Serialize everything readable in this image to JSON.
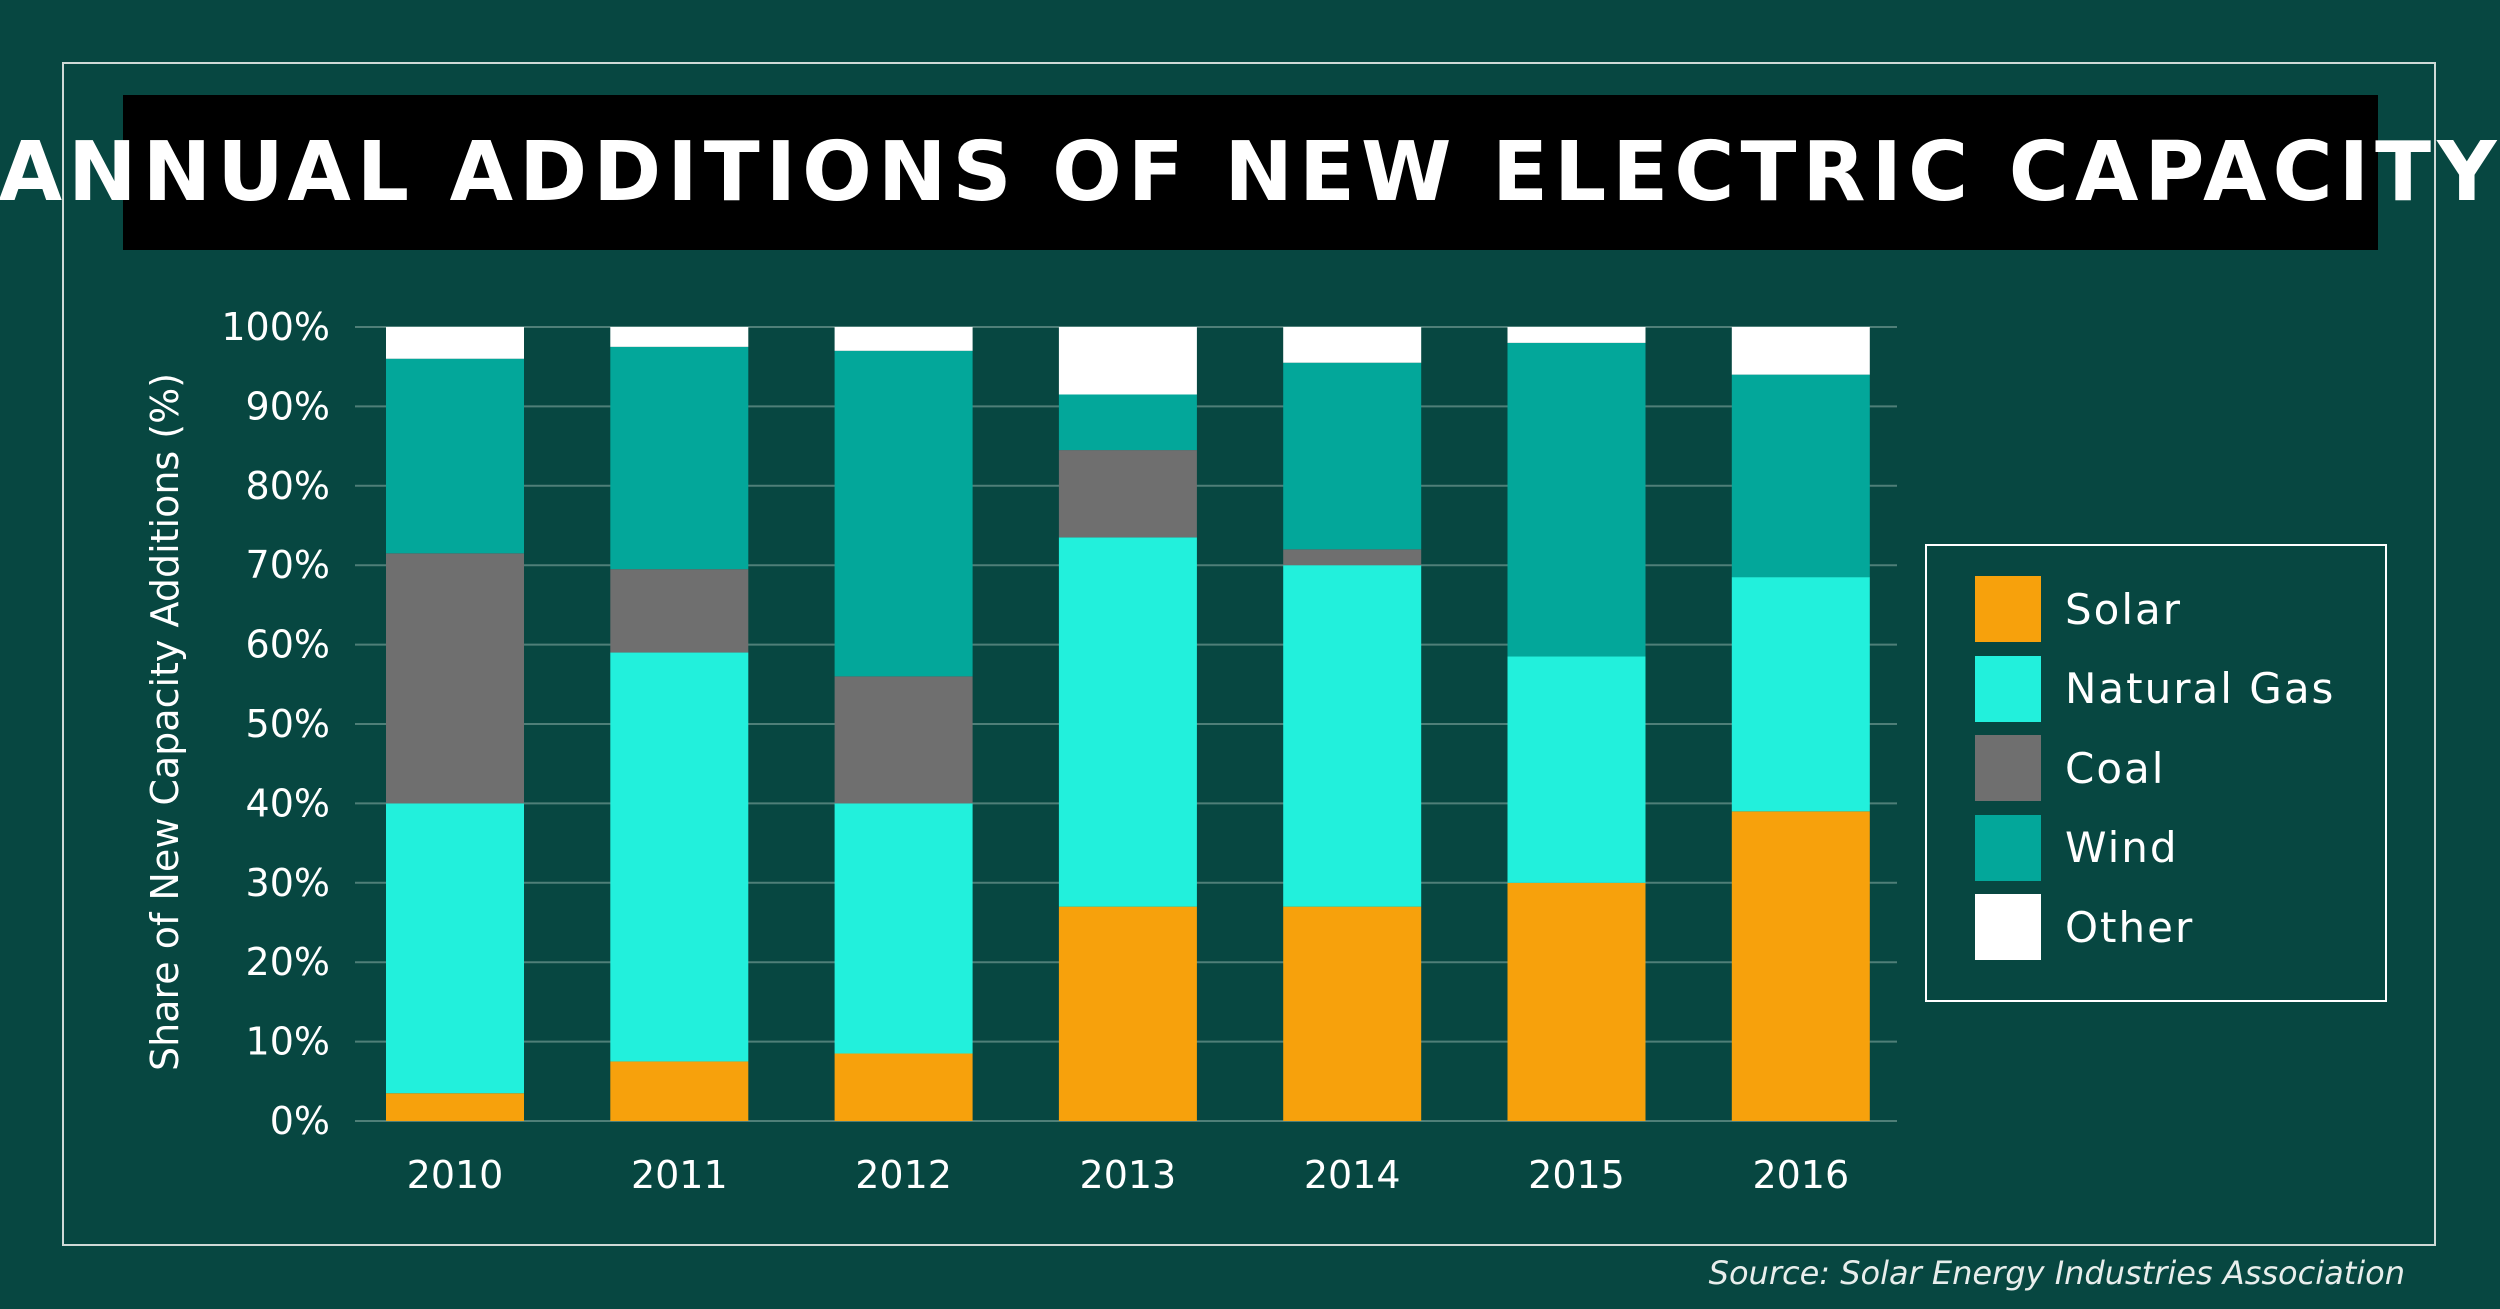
{
  "title": "ANNUAL ADDITIONS OF NEW ELECTRIC CAPACITY",
  "source": "Source: Solar Energy Industries Association",
  "colors": {
    "background": "#074741",
    "grid": "#4f7f78",
    "Solar": "#f7a10c",
    "Natural Gas": "#22f0dc",
    "Coal": "#6f6f6f",
    "Wind": "#03a79a",
    "Other": "#ffffff"
  },
  "chart_data": {
    "type": "bar",
    "stacked": true,
    "title": "ANNUAL ADDITIONS OF NEW ELECTRIC CAPACITY",
    "xlabel": "",
    "ylabel": "Share of New Capacity Additions (%)",
    "ylim": [
      0,
      100
    ],
    "yticks": [
      "0%",
      "10%",
      "20%",
      "30%",
      "40%",
      "50%",
      "60%",
      "70%",
      "80%",
      "90%",
      "100%"
    ],
    "grid": true,
    "legend_position": "right",
    "categories": [
      "2010",
      "2011",
      "2012",
      "2013",
      "2014",
      "2015",
      "2016"
    ],
    "series": [
      {
        "name": "Solar",
        "values": [
          3.5,
          7.5,
          8.5,
          27,
          27,
          30,
          39
        ]
      },
      {
        "name": "Natural Gas",
        "values": [
          36.5,
          51.5,
          31.5,
          46.5,
          43,
          28.5,
          29.5
        ]
      },
      {
        "name": "Coal",
        "values": [
          31.5,
          10.5,
          16,
          11,
          2,
          0,
          0
        ]
      },
      {
        "name": "Wind",
        "values": [
          24.5,
          28,
          41,
          7,
          23.5,
          39.5,
          25.5
        ]
      },
      {
        "name": "Other",
        "values": [
          4,
          2.5,
          3,
          8.5,
          4.5,
          2,
          6
        ]
      }
    ]
  }
}
